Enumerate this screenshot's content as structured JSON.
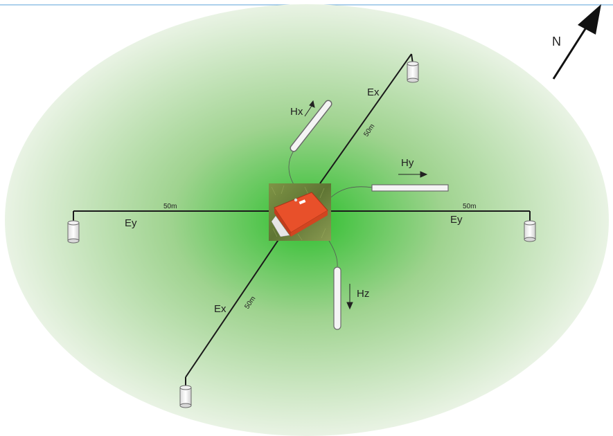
{
  "colors": {
    "field_center": "#2fbf2f",
    "field_edge": "#e9f3e4",
    "line": "#1a1a1a",
    "sensor_fill": "#f4f4f4",
    "sensor_stroke": "#6a6a6a",
    "box": "#e8502a",
    "grass": "#6b7f3a",
    "frame": "#5aa0d8"
  },
  "north": {
    "label": "N",
    "icon": "north-arrow-icon"
  },
  "lines": {
    "ex_upper": {
      "label": "Ex",
      "distance": "50m"
    },
    "ex_lower": {
      "label": "Ex",
      "distance": "50m"
    },
    "ey_left": {
      "label": "Ey",
      "distance": "50m"
    },
    "ey_right": {
      "label": "Ey",
      "distance": "50m"
    }
  },
  "sensors": {
    "hx": {
      "label": "Hx"
    },
    "hy": {
      "label": "Hy"
    },
    "hz": {
      "label": "Hz"
    }
  },
  "electrodes": [
    "electrode-icon",
    "electrode-icon",
    "electrode-icon",
    "electrode-icon"
  ],
  "recorder": {
    "icon": "recorder-box-icon"
  }
}
